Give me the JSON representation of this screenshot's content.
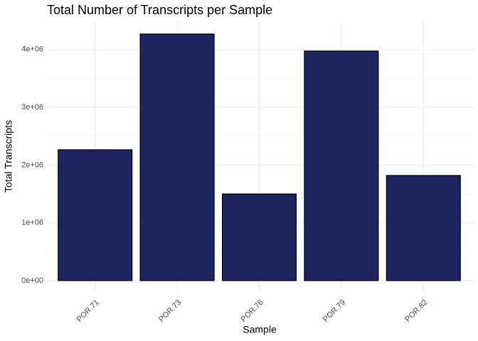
{
  "chart_data": {
    "type": "bar",
    "title": "Total Number of Transcripts per Sample",
    "x_label": "Sample",
    "y_label": "Total Transcripts",
    "categories": [
      "POR.71",
      "POR.73",
      "POR.76",
      "POR.79",
      "POR.82"
    ],
    "values": [
      2265000,
      4270000,
      1500000,
      3975000,
      1820000
    ],
    "color": "#1e255e",
    "edge_color": "#000000",
    "ylim": [
      -185000,
      4490000
    ],
    "yticks": [
      {
        "value": 0,
        "label": "0e+00"
      },
      {
        "value": 1000000,
        "label": "1e+06"
      },
      {
        "value": 2000000,
        "label": "2e+06"
      },
      {
        "value": 3000000,
        "label": "3e+06"
      },
      {
        "value": 4000000,
        "label": "4e+06"
      }
    ],
    "grid": true
  }
}
